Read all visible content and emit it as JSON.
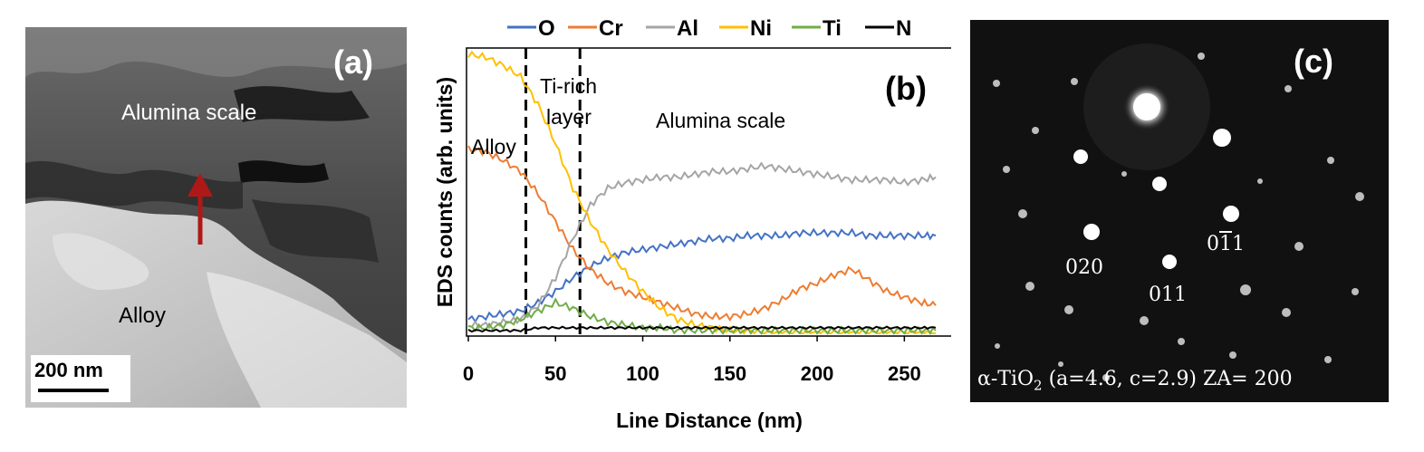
{
  "panel_a": {
    "label": "(a)",
    "scale_region_label": "Alumina scale",
    "alloy_region_label": "Alloy",
    "scale_bar": "200 nm",
    "colors": {
      "arrow": "#b01818"
    }
  },
  "panel_b": {
    "label": "(b)",
    "region_labels": {
      "alloy": "Alloy",
      "ti_rich_1": "Ti-rich",
      "ti_rich_2": "layer",
      "alumina": "Alumina scale"
    },
    "chart_data": {
      "type": "line",
      "xlabel": "Line Distance (nm)",
      "ylabel": "EDS counts (arb. units)",
      "xlim": [
        0,
        270
      ],
      "xticks": [
        0,
        50,
        100,
        150,
        200,
        250
      ],
      "ylim": [
        0,
        100
      ],
      "yticks": "none",
      "grid": false,
      "legend": "top",
      "vlines": [
        33,
        64
      ],
      "series": [
        {
          "name": "O",
          "color": "#4472c4",
          "x": [
            0,
            10,
            20,
            30,
            40,
            50,
            60,
            70,
            80,
            90,
            100,
            110,
            120,
            130,
            140,
            150,
            160,
            170,
            180,
            190,
            200,
            210,
            220,
            230,
            240,
            250,
            260,
            268
          ],
          "y": [
            5,
            6,
            7,
            8,
            11,
            15,
            20,
            24,
            27,
            29,
            30,
            31,
            32,
            33,
            34,
            34,
            35,
            35,
            35,
            36,
            36,
            36,
            36,
            35,
            35,
            35,
            35,
            35
          ]
        },
        {
          "name": "Cr",
          "color": "#ed7d31",
          "x": [
            0,
            10,
            20,
            30,
            40,
            50,
            60,
            70,
            80,
            90,
            100,
            110,
            120,
            130,
            140,
            150,
            160,
            170,
            180,
            190,
            200,
            210,
            220,
            230,
            240,
            250,
            260,
            268
          ],
          "y": [
            66,
            65,
            62,
            58,
            50,
            40,
            30,
            23,
            18,
            15,
            13,
            11,
            9,
            7,
            6,
            6,
            7,
            9,
            12,
            16,
            18,
            21,
            23,
            19,
            15,
            13,
            11,
            10
          ]
        },
        {
          "name": "Al",
          "color": "#a5a5a5",
          "x": [
            0,
            10,
            20,
            30,
            40,
            50,
            60,
            70,
            80,
            90,
            100,
            110,
            120,
            130,
            140,
            150,
            160,
            170,
            180,
            190,
            200,
            210,
            220,
            230,
            240,
            250,
            260,
            268
          ],
          "y": [
            3,
            3,
            4,
            5,
            10,
            20,
            34,
            46,
            52,
            54,
            55,
            56,
            56,
            57,
            58,
            58,
            59,
            60,
            59,
            58,
            57,
            56,
            55,
            55,
            55,
            54,
            55,
            56
          ]
        },
        {
          "name": "Ni",
          "color": "#ffc000",
          "x": [
            0,
            10,
            20,
            30,
            40,
            50,
            60,
            70,
            80,
            90,
            100,
            110,
            120,
            130,
            140,
            150,
            160,
            170,
            180,
            190,
            200,
            210,
            220,
            230,
            240,
            250,
            260,
            268
          ],
          "y": [
            100,
            99,
            96,
            92,
            82,
            68,
            52,
            40,
            30,
            22,
            15,
            9,
            5,
            3,
            2,
            1,
            1,
            0,
            0,
            0,
            0,
            0,
            0,
            0,
            0,
            0,
            0,
            0
          ]
        },
        {
          "name": "Ti",
          "color": "#70ad47",
          "x": [
            0,
            10,
            20,
            30,
            40,
            50,
            60,
            70,
            80,
            90,
            100,
            110,
            120,
            130,
            140,
            150,
            160,
            170,
            180,
            190,
            200,
            210,
            220,
            230,
            240,
            250,
            260,
            268
          ],
          "y": [
            2,
            2,
            3,
            5,
            8,
            11,
            9,
            6,
            4,
            3,
            2,
            2,
            1,
            1,
            1,
            1,
            1,
            1,
            1,
            1,
            1,
            1,
            1,
            1,
            1,
            1,
            1,
            1
          ]
        },
        {
          "name": "N",
          "color": "#000000",
          "x": [
            0,
            10,
            20,
            30,
            40,
            50,
            60,
            70,
            80,
            90,
            100,
            110,
            120,
            130,
            140,
            150,
            160,
            170,
            180,
            190,
            200,
            210,
            220,
            230,
            240,
            250,
            260,
            268
          ],
          "y": [
            1,
            1,
            1,
            1,
            2,
            2,
            2,
            2,
            2,
            2,
            2,
            2,
            2,
            2,
            2,
            2,
            2,
            2,
            2,
            2,
            2,
            2,
            2,
            2,
            2,
            2,
            2,
            2
          ]
        }
      ]
    }
  },
  "panel_c": {
    "label": "(c)",
    "spots": {
      "a": "020",
      "b": "011",
      "c_digit1": "0",
      "c_digit2": "1",
      "c_digit3": "1"
    },
    "caption_pre": "α-TiO",
    "caption_sub": "2",
    "caption_post": " (a=4.6, c=2.9) ZA= 200"
  }
}
